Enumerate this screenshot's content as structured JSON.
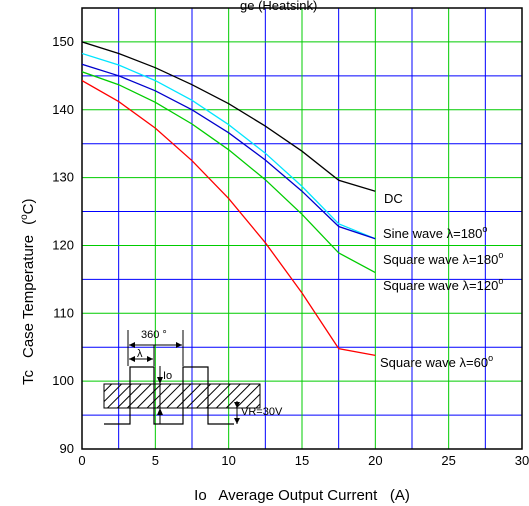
{
  "chart_data": {
    "type": "line",
    "title": "ge (Heatsink)",
    "xlabel": "Io   Average Output Current   (A)",
    "ylabel_symbol": "Tc",
    "ylabel_text": "Case Temperature",
    "ylabel_unit_open": "(",
    "ylabel_unit_deg": "o",
    "ylabel_unit_close": "C)",
    "xlim": [
      0,
      30
    ],
    "ylim": [
      90,
      155
    ],
    "xticks": [
      "0",
      "5",
      "10",
      "15",
      "20",
      "25",
      "30"
    ],
    "yticks": [
      "90",
      "100",
      "110",
      "120",
      "130",
      "140",
      "150"
    ],
    "grid": true,
    "grid_color": "#00cc00",
    "grid_minor_color": "#0000ff",
    "series": [
      {
        "name": "DC",
        "color": "#000000",
        "x": [
          0,
          2.5,
          5,
          7.5,
          10,
          12.5,
          15,
          17.5,
          20
        ],
        "y": [
          150,
          148.3,
          146.2,
          143.7,
          140.9,
          137.6,
          133.9,
          129.6,
          128.0
        ]
      },
      {
        "name": "Sine wave",
        "lambda": "=180",
        "color": "#00e5ff",
        "x": [
          0,
          2.5,
          5,
          7.5,
          10,
          12.5,
          15,
          17.5,
          20
        ],
        "y": [
          148.3,
          146.6,
          144.3,
          141.4,
          137.8,
          133.6,
          128.7,
          123.2,
          121.0
        ]
      },
      {
        "name": "Square wave",
        "lambda": "=180",
        "color": "#0000cc",
        "x": [
          0,
          2.5,
          5,
          7.5,
          10,
          12.5,
          15,
          17.5,
          20
        ],
        "y": [
          146.7,
          145.0,
          142.8,
          140.0,
          136.6,
          132.6,
          128.0,
          122.8,
          121.0
        ]
      },
      {
        "name": "Square wave",
        "lambda": "=120",
        "color": "#00cc00",
        "x": [
          0,
          2.5,
          5,
          7.5,
          10,
          12.5,
          15,
          17.5,
          20
        ],
        "y": [
          145.6,
          143.7,
          141.1,
          137.9,
          134.1,
          129.7,
          124.6,
          118.9,
          116.0
        ]
      },
      {
        "name": "Square wave",
        "lambda": "=60",
        "color": "#ff0000",
        "x": [
          0,
          2.5,
          5,
          7.5,
          10,
          12.5,
          15,
          17.5,
          20
        ],
        "y": [
          144.3,
          141.2,
          137.3,
          132.5,
          126.9,
          120.4,
          113.0,
          104.8,
          103.8
        ]
      }
    ],
    "lambda_symbol": "λ",
    "degree_symbol": "o",
    "inset": {
      "period_label": "360 °",
      "lambda_label": "λ",
      "io_label": "Io",
      "vr_label": "VR=30V"
    }
  }
}
